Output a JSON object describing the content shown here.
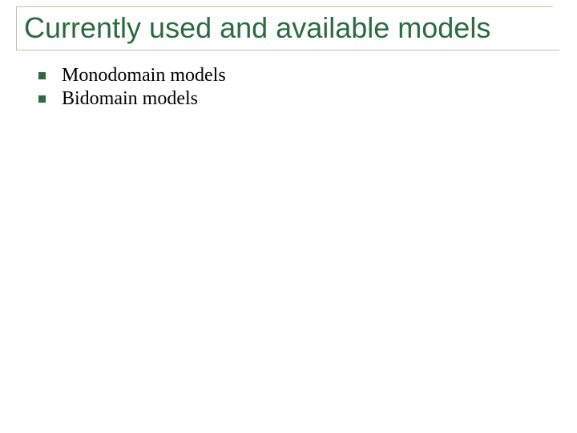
{
  "slide": {
    "title": "Currently used and available models",
    "title_color": "#2b6b3f",
    "title_fontsize": 36,
    "border_color": "#c0bfa8",
    "background_color": "#ffffff",
    "bullets": [
      {
        "text": "Monodomain models",
        "marker_color": "#2b6b3f"
      },
      {
        "text": "Bidomain models",
        "marker_color": "#2b6b3f"
      }
    ],
    "bullet_fontsize": 24,
    "bullet_text_color": "#000000",
    "bullet_marker_size": 9
  }
}
